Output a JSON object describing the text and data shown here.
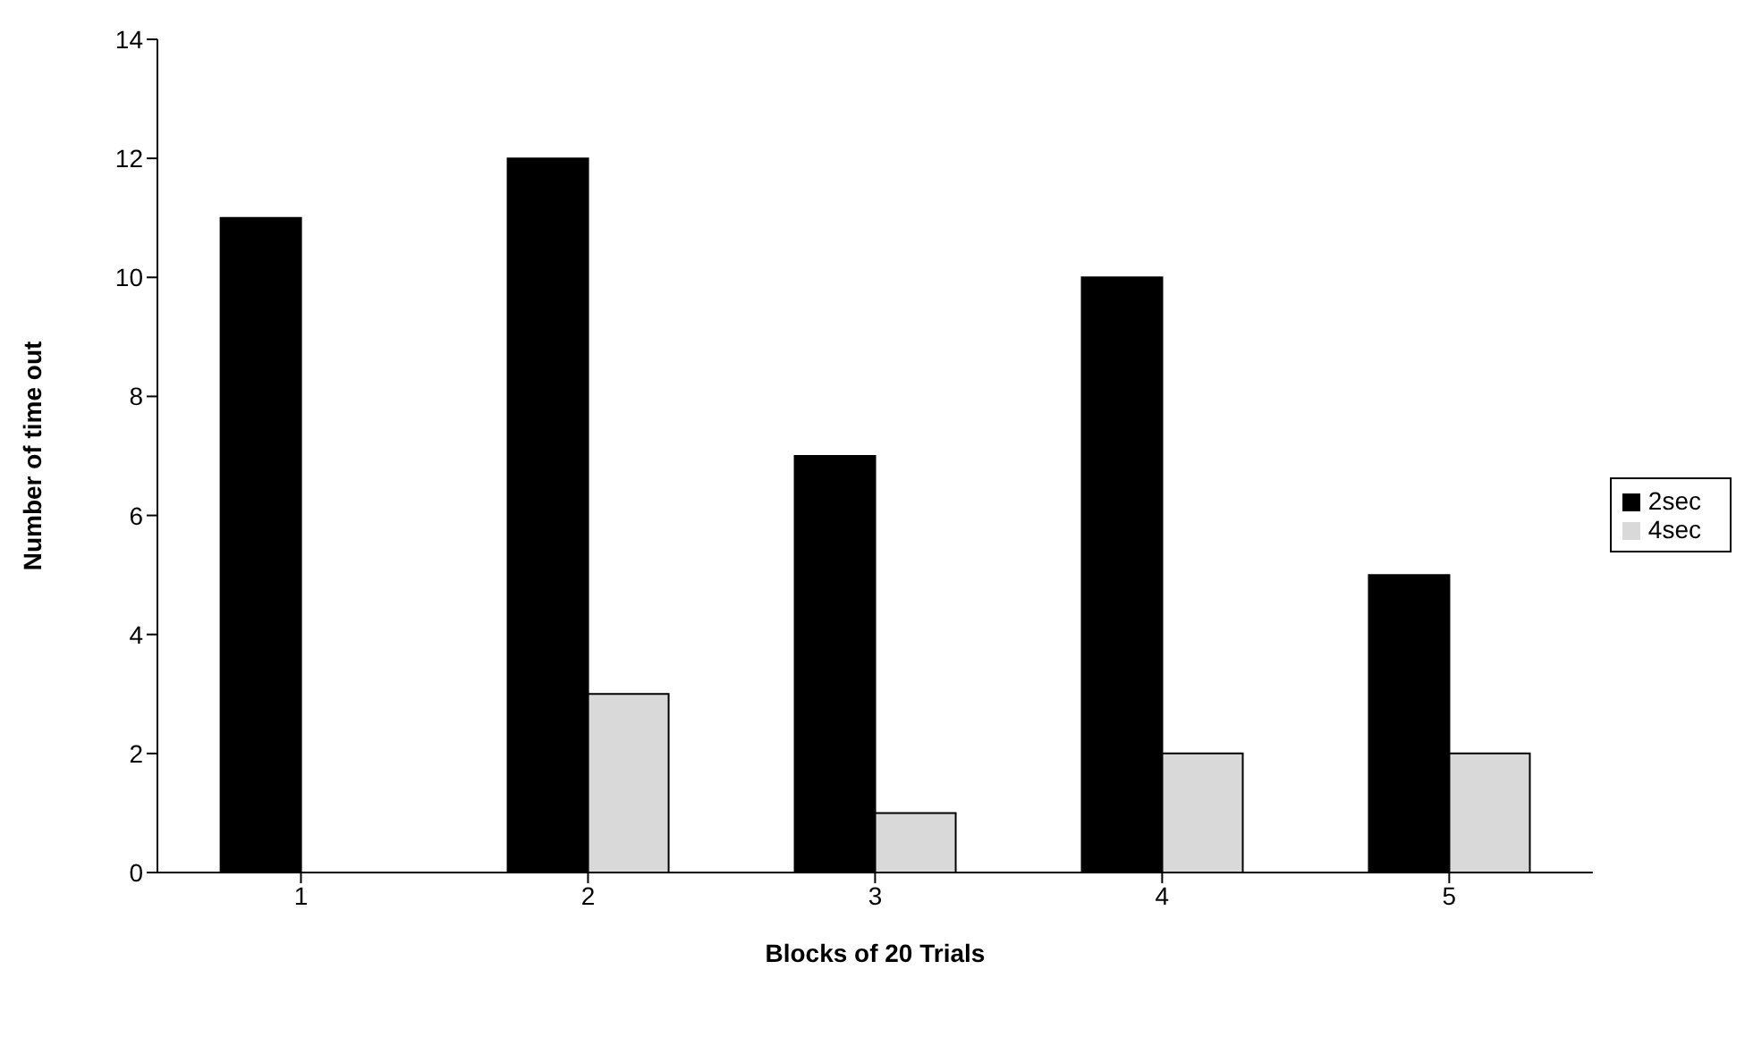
{
  "chart_data": {
    "type": "bar",
    "xlabel": "Blocks of 20 Trials",
    "ylabel": "Number of time out",
    "categories": [
      "1",
      "2",
      "3",
      "4",
      "5"
    ],
    "series": [
      {
        "name": "2sec",
        "color": "#000000",
        "values": [
          11,
          12,
          7,
          10,
          5
        ]
      },
      {
        "name": "4sec",
        "color": "#d9d9d9",
        "values": [
          0,
          3,
          1,
          2,
          2
        ]
      }
    ],
    "ylim": [
      0,
      14
    ],
    "yticks": [
      0,
      2,
      4,
      6,
      8,
      10,
      12,
      14
    ],
    "grid": false,
    "legend": "right"
  }
}
